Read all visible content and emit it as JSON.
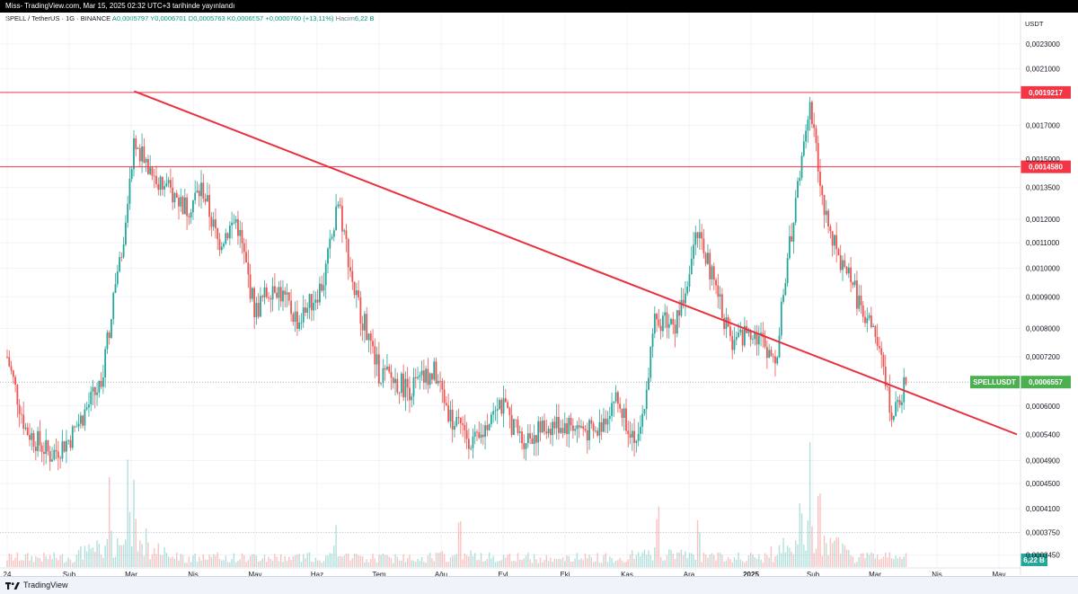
{
  "window": {
    "caption": "Miss- TradingView.com, Mar 15, 2025 02:32 UTC+3 tarihinde yayınlandı"
  },
  "legend": {
    "symbol": "SPELL / TetherUS · 1G · BINANCE",
    "open": "A0,0005797",
    "high": "Y0,0006701",
    "low": "D0,0005763",
    "close": "K0,0006557",
    "change": "+0,0000760 (+13,11%)",
    "volume_label": "Hacim",
    "volume_value": "6,22 B"
  },
  "footer": {
    "brand": "TradingView"
  },
  "colors": {
    "up": "#26a69a",
    "down": "#ef5350",
    "trend": "#e8303f",
    "level": "#f23645",
    "last_price": "#4caf50",
    "grid": "#f0f3fa"
  },
  "chart_data": {
    "type": "candlestick",
    "interval": "1G",
    "exchange": "BINANCE",
    "currency": "USDT",
    "x_ticks": [
      "24",
      "Şub",
      "Mar",
      "Nis",
      "May",
      "Haz",
      "Tem",
      "Ağu",
      "Eyl",
      "Eki",
      "Kas",
      "Ara",
      "2025",
      "Şub",
      "Mar",
      "Nis",
      "May"
    ],
    "y_ticks": [
      "0,0023000",
      "0,0021000",
      "0,0017000",
      "0,0015000",
      "0,0013500",
      "0,0012000",
      "0,0011000",
      "0,0010000",
      "0,0009000",
      "0,0008000",
      "0,0007200",
      "0,0006000",
      "0,0005400",
      "0,0004900",
      "0,0004500",
      "0,0004100",
      "0,0003750",
      "0,0003450"
    ],
    "y_tick_values": [
      0.0023,
      0.0021,
      0.0017,
      0.0015,
      0.00135,
      0.0012,
      0.0011,
      0.001,
      0.0009,
      0.0008,
      0.00072,
      0.0006,
      0.00054,
      0.00049,
      0.00045,
      0.00041,
      0.000375,
      0.000345
    ],
    "y_scale": "log",
    "ylim": [
      0.00033,
      0.0025
    ],
    "horizontal_levels": [
      {
        "label": "0,0019217",
        "value": 0.0019217
      },
      {
        "label": "0,0014580",
        "value": 0.001458
      }
    ],
    "trendline": {
      "start": {
        "month": "Mar 2024",
        "value": 0.00193
      },
      "end": {
        "month": "Mar 2025",
        "value": 0.00054
      }
    },
    "last_price": {
      "symbol": "SPELLUSDT",
      "label": "0,0006557",
      "value": 0.0006557
    },
    "volume_last": "6,22 B",
    "price_path": [
      {
        "m": 0,
        "v": 0.00072
      },
      {
        "m": 0.3,
        "v": 0.00055
      },
      {
        "m": 0.7,
        "v": 0.0005
      },
      {
        "m": 1.0,
        "v": 0.00053
      },
      {
        "m": 1.5,
        "v": 0.00065
      },
      {
        "m": 1.9,
        "v": 0.00115
      },
      {
        "m": 2.05,
        "v": 0.0016
      },
      {
        "m": 2.4,
        "v": 0.0014
      },
      {
        "m": 2.9,
        "v": 0.00125
      },
      {
        "m": 3.15,
        "v": 0.00135
      },
      {
        "m": 3.4,
        "v": 0.0011
      },
      {
        "m": 3.7,
        "v": 0.0012
      },
      {
        "m": 4.0,
        "v": 0.00085
      },
      {
        "m": 4.3,
        "v": 0.00095
      },
      {
        "m": 4.7,
        "v": 0.00082
      },
      {
        "m": 5.1,
        "v": 0.00095
      },
      {
        "m": 5.35,
        "v": 0.00128
      },
      {
        "m": 5.6,
        "v": 0.00092
      },
      {
        "m": 6.0,
        "v": 0.00068
      },
      {
        "m": 6.5,
        "v": 0.00064
      },
      {
        "m": 6.9,
        "v": 0.00068
      },
      {
        "m": 7.2,
        "v": 0.00056
      },
      {
        "m": 7.6,
        "v": 0.00052
      },
      {
        "m": 7.9,
        "v": 0.00062
      },
      {
        "m": 8.3,
        "v": 0.00053
      },
      {
        "m": 8.8,
        "v": 0.00056
      },
      {
        "m": 9.1,
        "v": 0.00056
      },
      {
        "m": 9.5,
        "v": 0.00054
      },
      {
        "m": 9.8,
        "v": 0.00062
      },
      {
        "m": 10.2,
        "v": 0.00052
      },
      {
        "m": 10.45,
        "v": 0.00083
      },
      {
        "m": 10.8,
        "v": 0.00082
      },
      {
        "m": 11.15,
        "v": 0.00115
      },
      {
        "m": 11.4,
        "v": 0.00095
      },
      {
        "m": 11.7,
        "v": 0.00075
      },
      {
        "m": 12.0,
        "v": 0.0008
      },
      {
        "m": 12.4,
        "v": 0.00072
      },
      {
        "m": 12.7,
        "v": 0.00125
      },
      {
        "m": 12.95,
        "v": 0.0018
      },
      {
        "m": 13.2,
        "v": 0.0012
      },
      {
        "m": 13.6,
        "v": 0.00095
      },
      {
        "m": 14.0,
        "v": 0.00078
      },
      {
        "m": 14.3,
        "v": 0.00057
      },
      {
        "m": 14.5,
        "v": 0.00066
      }
    ],
    "volume_spikes": [
      {
        "m": 1.65,
        "v": 0.7
      },
      {
        "m": 1.95,
        "v": 0.9
      },
      {
        "m": 2.05,
        "v": 0.75
      },
      {
        "m": 2.25,
        "v": 0.35
      },
      {
        "m": 5.3,
        "v": 0.35
      },
      {
        "m": 7.3,
        "v": 0.5
      },
      {
        "m": 10.5,
        "v": 0.6
      },
      {
        "m": 11.15,
        "v": 0.45
      },
      {
        "m": 12.8,
        "v": 0.65
      },
      {
        "m": 12.95,
        "v": 0.95
      },
      {
        "m": 13.1,
        "v": 0.8
      }
    ]
  }
}
